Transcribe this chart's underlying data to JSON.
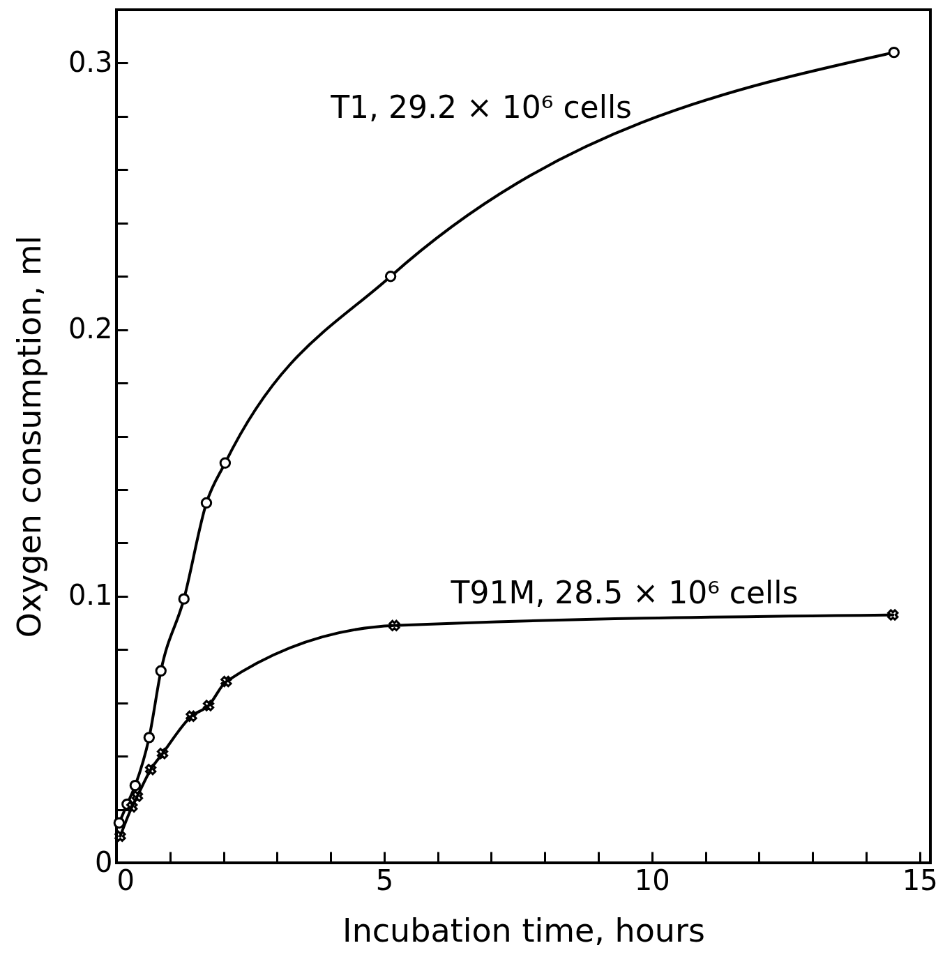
{
  "chart_data": {
    "type": "line",
    "xlabel": "Incubation time, hours",
    "ylabel": "Oxygen consumption, ml",
    "xlim": [
      0,
      15.2
    ],
    "ylim": [
      0,
      0.32
    ],
    "xticks": [
      0,
      {
        "value": 1,
        "label": null
      },
      {
        "value": 2,
        "label": null
      },
      {
        "value": 3,
        "label": null
      },
      {
        "value": 4,
        "label": null
      },
      5,
      {
        "value": 6,
        "label": null
      },
      {
        "value": 7,
        "label": null
      },
      {
        "value": 8,
        "label": null
      },
      {
        "value": 9,
        "label": null
      },
      10,
      {
        "value": 11,
        "label": null
      },
      {
        "value": 12,
        "label": null
      },
      {
        "value": 13,
        "label": null
      },
      {
        "value": 14,
        "label": null
      },
      15
    ],
    "yticks": [
      0,
      {
        "value": 0.02,
        "label": null
      },
      {
        "value": 0.04,
        "label": null
      },
      {
        "value": 0.06,
        "label": null
      },
      {
        "value": 0.08,
        "label": null
      },
      0.1,
      {
        "value": 0.12,
        "label": null
      },
      {
        "value": 0.14,
        "label": null
      },
      {
        "value": 0.16,
        "label": null
      },
      {
        "value": 0.18,
        "label": null
      },
      0.2,
      {
        "value": 0.22,
        "label": null
      },
      {
        "value": 0.24,
        "label": null
      },
      {
        "value": 0.26,
        "label": null
      },
      {
        "value": 0.28,
        "label": null
      },
      0.3
    ],
    "grid": false,
    "line_style": "solid",
    "series": [
      {
        "name": "T1, 29.2 × 10⁶ cells",
        "color": "#000000",
        "marker": "circle",
        "x": [
          0.05,
          0.2,
          0.35,
          0.61,
          0.83,
          1.26,
          1.68,
          2.03,
          5.12,
          14.52
        ],
        "values": [
          0.015,
          0.022,
          0.029,
          0.047,
          0.072,
          0.099,
          0.135,
          0.15,
          0.22,
          0.304
        ]
      },
      {
        "name": "T91M, 28.5 × 10⁶ cells",
        "color": "#000000",
        "marker": "cross",
        "x": [
          0.07,
          0.29,
          0.39,
          0.64,
          0.86,
          1.4,
          1.72,
          2.05,
          5.19,
          14.5
        ],
        "values": [
          0.01,
          0.021,
          0.025,
          0.035,
          0.041,
          0.055,
          0.059,
          0.068,
          0.089,
          0.093
        ]
      }
    ]
  }
}
